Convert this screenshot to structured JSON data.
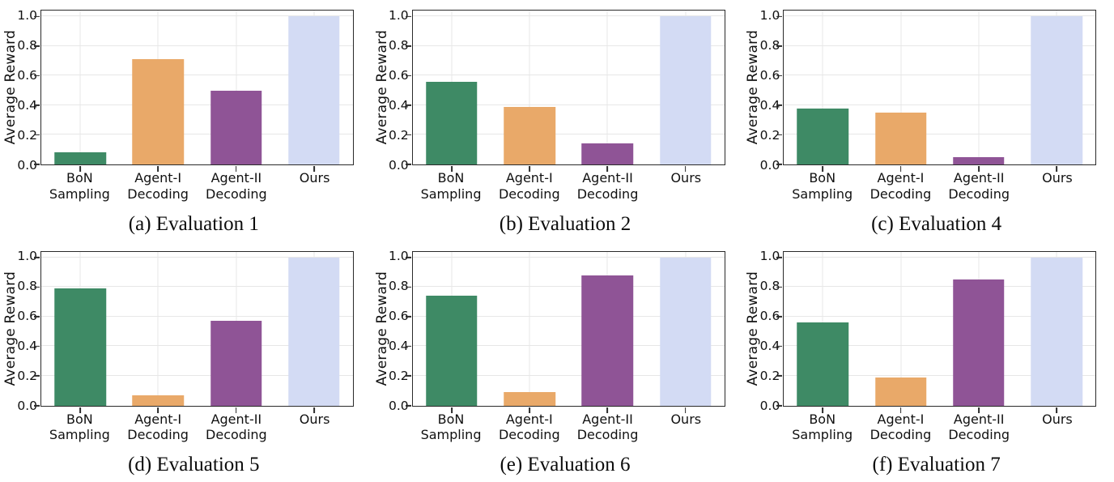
{
  "figure": {
    "ylabel": "Average Reward",
    "yticks": [
      0.0,
      0.2,
      0.4,
      0.6,
      0.8,
      1.0
    ],
    "ytick_labels": [
      "0.0",
      "0.2",
      "0.4",
      "0.6",
      "0.8",
      "1.0"
    ],
    "ylim": [
      0,
      1.04
    ],
    "categories": [
      "BoN Sampling",
      "Agent-I Decoding",
      "Agent-II Decoding",
      "Ours"
    ],
    "bar_colors": [
      "#3E8A65",
      "#E9A969",
      "#8F5496",
      "#D3DBF4"
    ],
    "grid": "on",
    "legend": "none"
  },
  "chart_data": [
    {
      "type": "bar",
      "title": "(a) Evaluation 1",
      "ylabel": "Average Reward",
      "categories": [
        "BoN Sampling",
        "Agent-I Decoding",
        "Agent-II Decoding",
        "Ours"
      ],
      "values": [
        0.08,
        0.71,
        0.5,
        1.0
      ],
      "ylim": [
        0,
        1.04
      ]
    },
    {
      "type": "bar",
      "title": "(b) Evaluation 2",
      "ylabel": "Average Reward",
      "categories": [
        "BoN Sampling",
        "Agent-I Decoding",
        "Agent-II Decoding",
        "Ours"
      ],
      "values": [
        0.56,
        0.39,
        0.14,
        1.0
      ],
      "ylim": [
        0,
        1.04
      ]
    },
    {
      "type": "bar",
      "title": "(c) Evaluation 4",
      "ylabel": "Average Reward",
      "categories": [
        "BoN Sampling",
        "Agent-I Decoding",
        "Agent-II Decoding",
        "Ours"
      ],
      "values": [
        0.38,
        0.35,
        0.05,
        1.0
      ],
      "ylim": [
        0,
        1.04
      ]
    },
    {
      "type": "bar",
      "title": "(d) Evaluation 5",
      "ylabel": "Average Reward",
      "categories": [
        "BoN Sampling",
        "Agent-I Decoding",
        "Agent-II Decoding",
        "Ours"
      ],
      "values": [
        0.79,
        0.07,
        0.57,
        1.0
      ],
      "ylim": [
        0,
        1.04
      ]
    },
    {
      "type": "bar",
      "title": "(e) Evaluation 6",
      "ylabel": "Average Reward",
      "categories": [
        "BoN Sampling",
        "Agent-I Decoding",
        "Agent-II Decoding",
        "Ours"
      ],
      "values": [
        0.74,
        0.09,
        0.88,
        1.0
      ],
      "ylim": [
        0,
        1.04
      ]
    },
    {
      "type": "bar",
      "title": "(f) Evaluation 7",
      "ylabel": "Average Reward",
      "categories": [
        "BoN Sampling",
        "Agent-I Decoding",
        "Agent-II Decoding",
        "Ours"
      ],
      "values": [
        0.56,
        0.19,
        0.85,
        1.0
      ],
      "ylim": [
        0,
        1.04
      ]
    }
  ]
}
